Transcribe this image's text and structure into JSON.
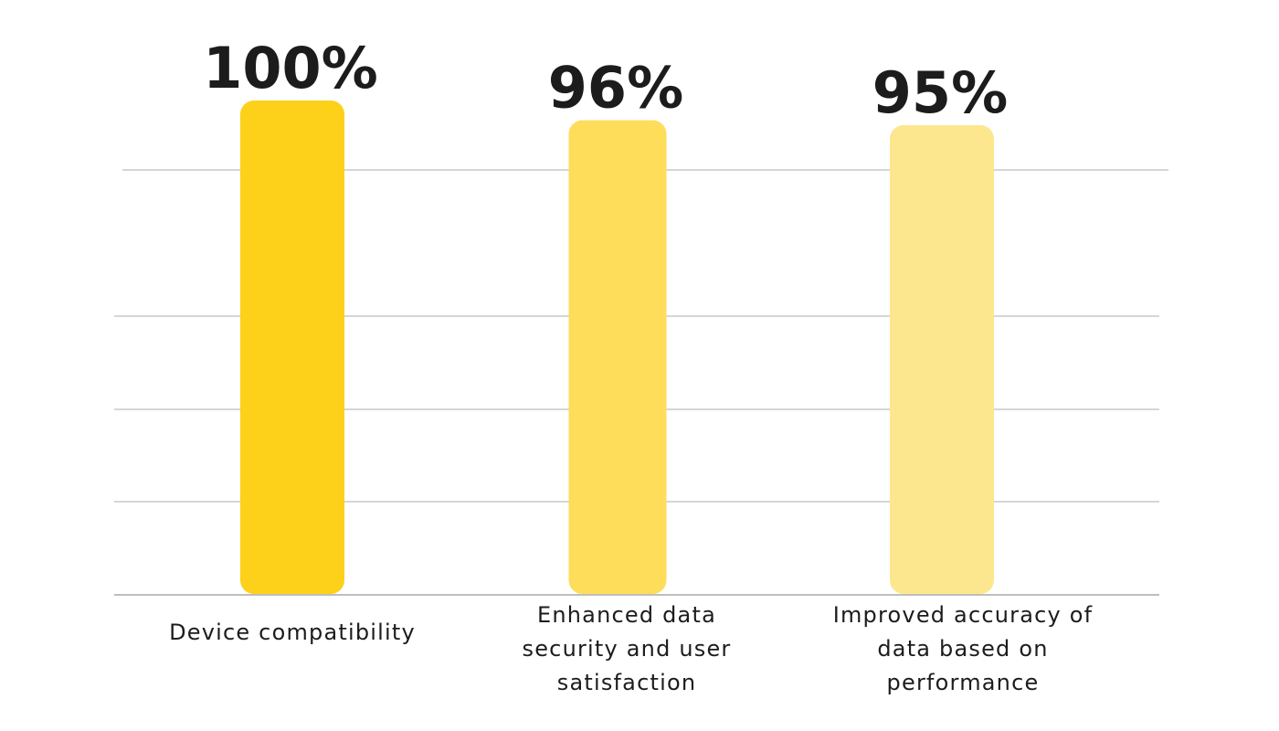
{
  "chart_data": {
    "type": "bar",
    "categories": [
      [
        "Device compatibility"
      ],
      [
        "Enhanced data",
        "security and user",
        "satisfaction"
      ],
      [
        "Improved accuracy of",
        "data based on",
        "performance"
      ]
    ],
    "values": [
      100,
      96,
      95
    ],
    "value_labels": [
      "100%",
      "96%",
      "95%"
    ],
    "colors": [
      "#FDD01A",
      "#FDDD5A",
      "#FDE78E"
    ],
    "title": "",
    "xlabel": "",
    "ylabel": "",
    "grid": true,
    "legend": "none"
  }
}
